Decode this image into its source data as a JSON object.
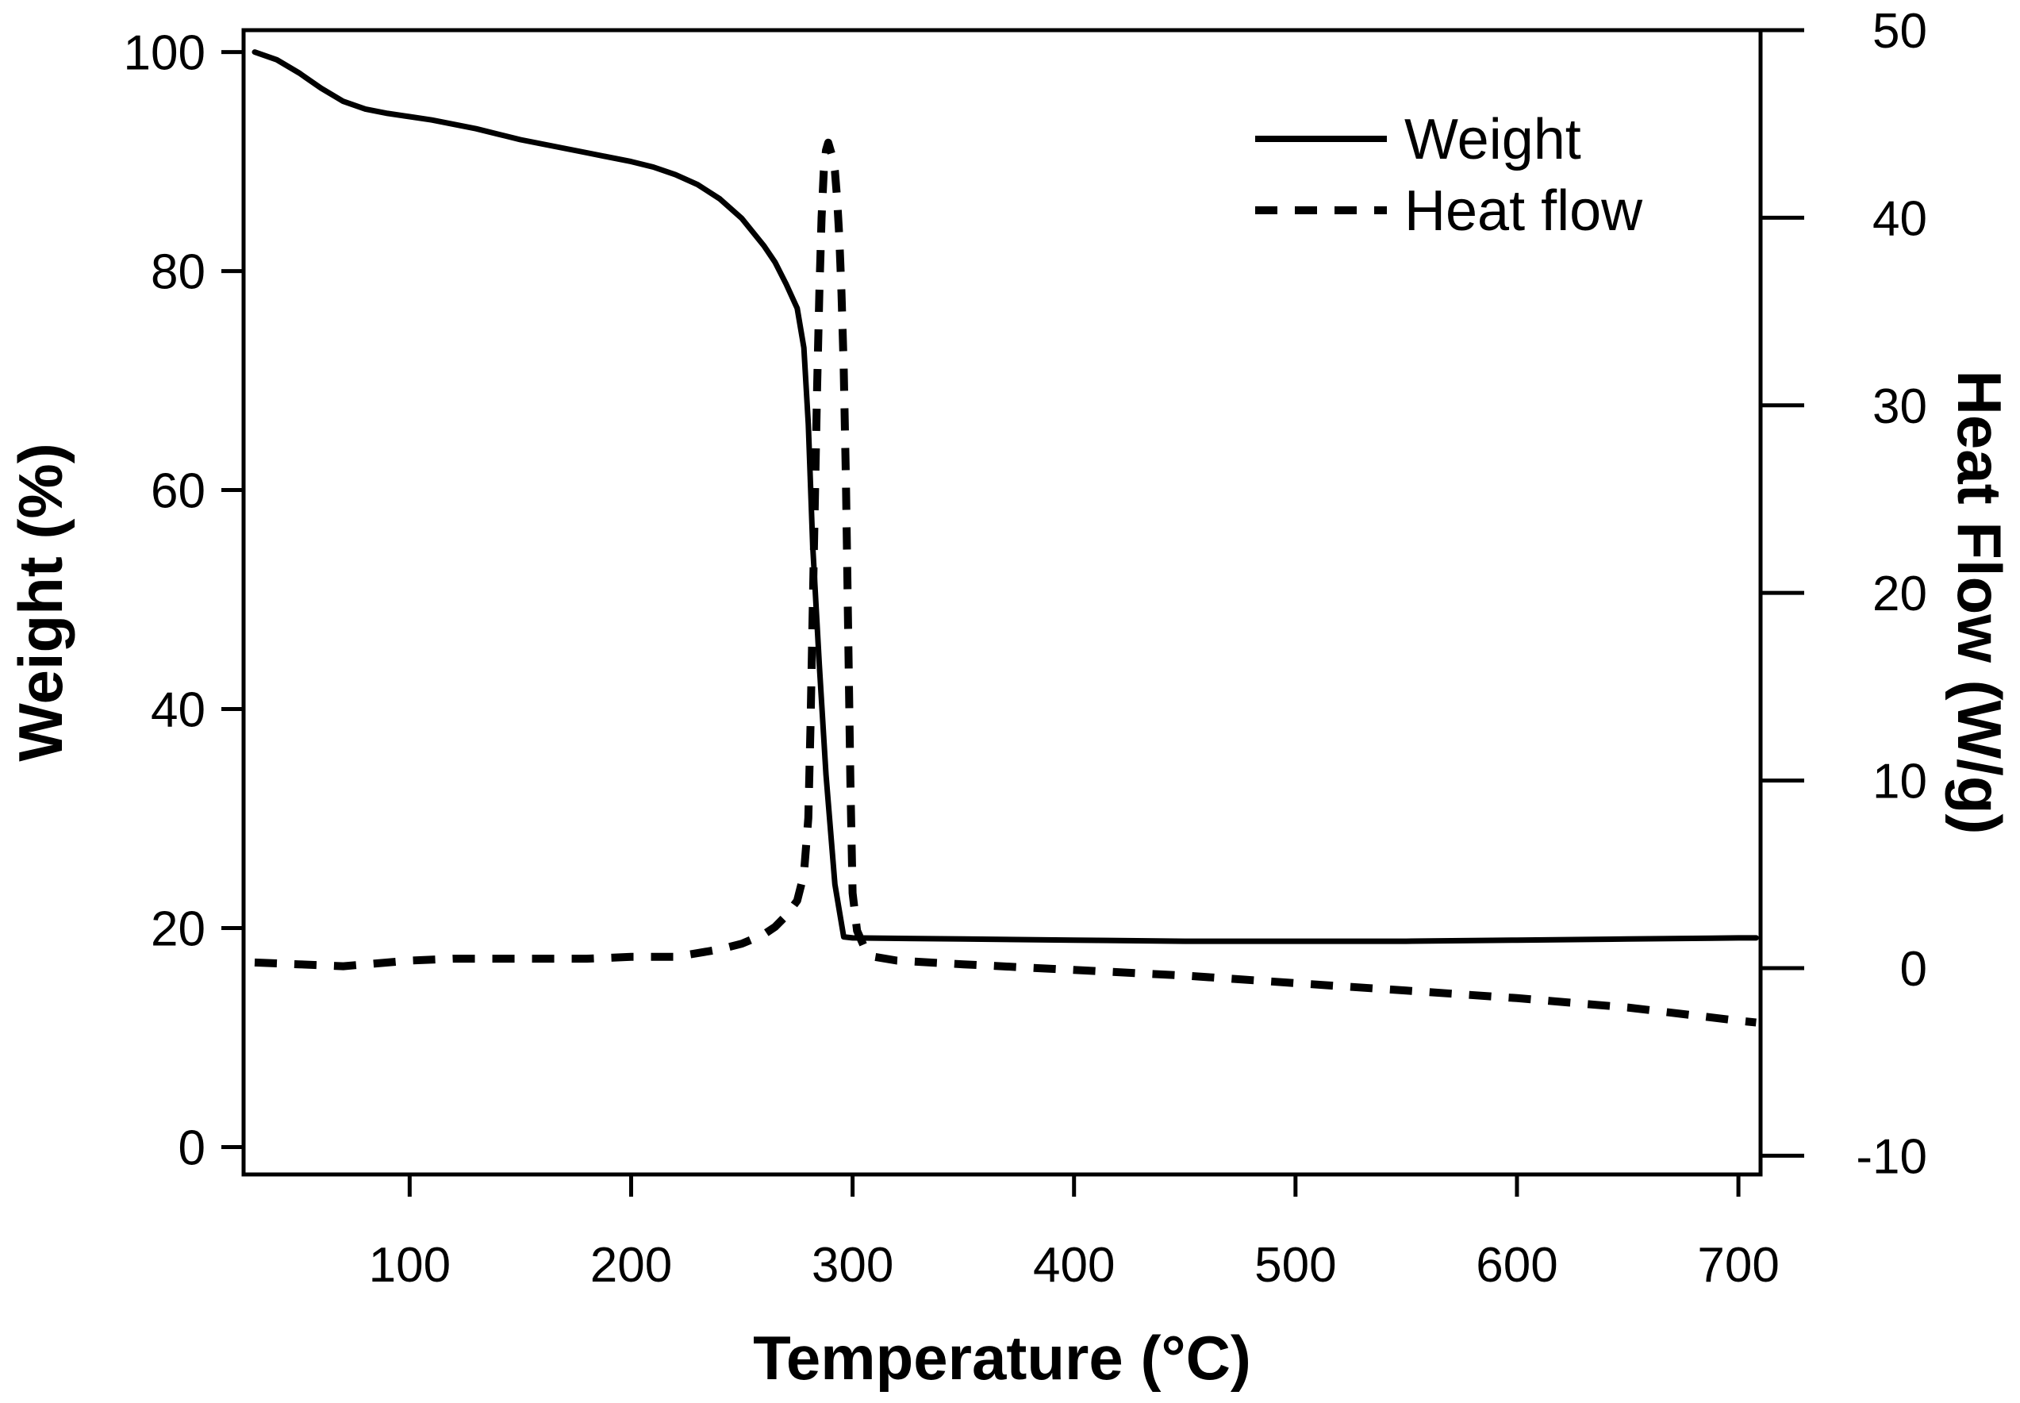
{
  "chart_data": {
    "type": "line",
    "title": "",
    "xlabel": "Temperature (°C)",
    "ylabel": "Weight (%)",
    "y2label": "Heat Flow (W/g)",
    "xlim": [
      25,
      710
    ],
    "ylim": [
      -2.5,
      102
    ],
    "y2lim": [
      -11,
      50
    ],
    "xticks": [
      100,
      200,
      300,
      400,
      500,
      600,
      700
    ],
    "yticks": [
      0,
      20,
      40,
      60,
      80,
      100
    ],
    "y2ticks": [
      -10,
      0,
      10,
      20,
      30,
      40,
      50
    ],
    "legend_position": "top-right",
    "colors": {
      "line": "#000000",
      "axis": "#000000",
      "background": "#ffffff"
    },
    "series": [
      {
        "name": "Weight",
        "axis": "left",
        "style": "solid",
        "x": [
          30,
          40,
          50,
          60,
          70,
          80,
          90,
          100,
          110,
          120,
          130,
          140,
          150,
          160,
          170,
          180,
          190,
          200,
          210,
          220,
          230,
          240,
          250,
          260,
          265,
          270,
          275,
          278,
          280,
          282,
          285,
          288,
          292,
          296,
          300,
          350,
          400,
          450,
          500,
          550,
          600,
          650,
          700,
          708
        ],
        "y": [
          100,
          99.3,
          98.1,
          96.7,
          95.5,
          94.8,
          94.4,
          94.1,
          93.8,
          93.4,
          93.0,
          92.5,
          92.0,
          91.6,
          91.2,
          90.8,
          90.4,
          90.0,
          89.5,
          88.8,
          87.9,
          86.6,
          84.8,
          82.3,
          80.8,
          78.8,
          76.6,
          73.0,
          66.0,
          55.0,
          44.0,
          34.0,
          24.0,
          19.2,
          19.1,
          19.0,
          18.9,
          18.8,
          18.8,
          18.8,
          18.9,
          19.0,
          19.1,
          19.1
        ]
      },
      {
        "name": "Heat flow",
        "axis": "right",
        "style": "dashed",
        "x": [
          30,
          50,
          70,
          80,
          100,
          120,
          140,
          160,
          180,
          200,
          220,
          230,
          240,
          250,
          260,
          265,
          270,
          275,
          278,
          280,
          281,
          282,
          283,
          284,
          285,
          286,
          287,
          288,
          289,
          290,
          291,
          292,
          293,
          294,
          295,
          296,
          297,
          298,
          299,
          300,
          302,
          305,
          310,
          320,
          350,
          400,
          450,
          500,
          550,
          600,
          650,
          700,
          708
        ],
        "y": [
          0.3,
          0.2,
          0.1,
          0.2,
          0.4,
          0.5,
          0.5,
          0.5,
          0.5,
          0.6,
          0.6,
          0.8,
          1.0,
          1.3,
          1.8,
          2.2,
          2.8,
          3.6,
          5.0,
          8.0,
          13.0,
          19.0,
          25.0,
          31.0,
          36.0,
          40.0,
          42.5,
          43.6,
          44.0,
          43.6,
          43.2,
          42.5,
          41.0,
          39.0,
          36.0,
          32.0,
          26.0,
          18.0,
          10.0,
          4.0,
          2.0,
          1.2,
          0.6,
          0.4,
          0.2,
          -0.1,
          -0.4,
          -0.8,
          -1.2,
          -1.6,
          -2.1,
          -2.8,
          -2.9
        ]
      }
    ]
  }
}
